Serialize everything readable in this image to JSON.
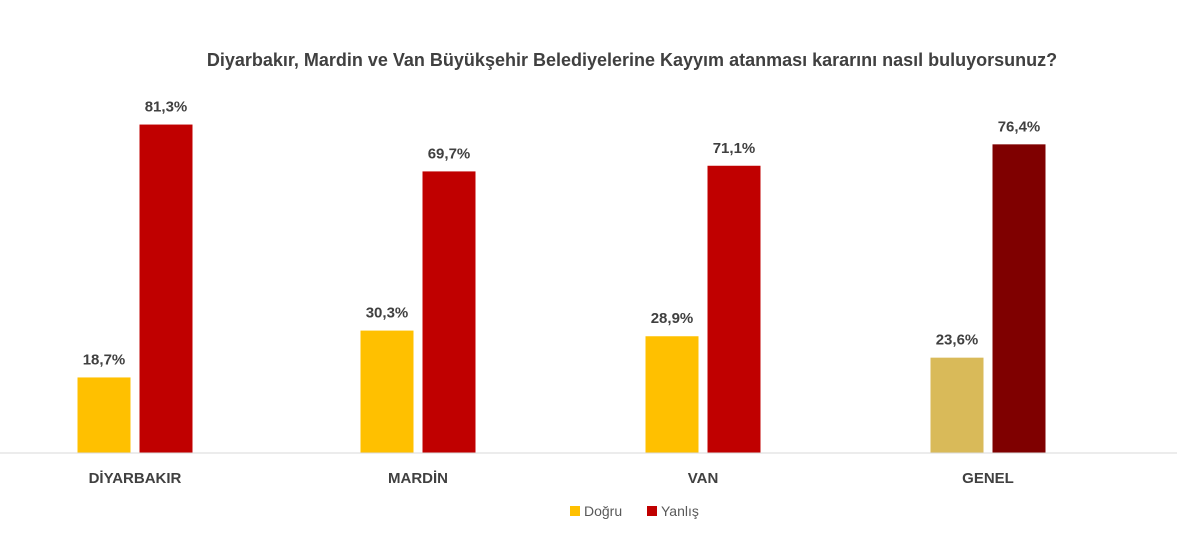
{
  "chart_data": {
    "type": "bar",
    "title": "Diyarbakır, Mardin ve Van Büyükşehir Belediyelerine Kayyım atanması kararını nasıl buluyorsunuz?",
    "categories": [
      "DİYARBAKIR",
      "MARDİN",
      "VAN",
      "GENEL"
    ],
    "series": [
      {
        "name": "Doğru",
        "values": [
          18.7,
          30.3,
          28.9,
          23.6
        ],
        "labels": [
          "18,7%",
          "30,3%",
          "28,9%",
          "23,6%"
        ],
        "color": "#FFC000",
        "highlight_color": "#D9BA59"
      },
      {
        "name": "Yanlış",
        "values": [
          81.3,
          69.7,
          71.1,
          76.4
        ],
        "labels": [
          "81,3%",
          "69,7%",
          "71,1%",
          "76,4%"
        ],
        "color": "#C00000",
        "highlight_color": "#7F0000"
      }
    ],
    "highlight_category": "GENEL",
    "ylim": [
      0,
      100
    ],
    "grid": false,
    "legend_position": "bottom",
    "xlabel": "",
    "ylabel": ""
  }
}
